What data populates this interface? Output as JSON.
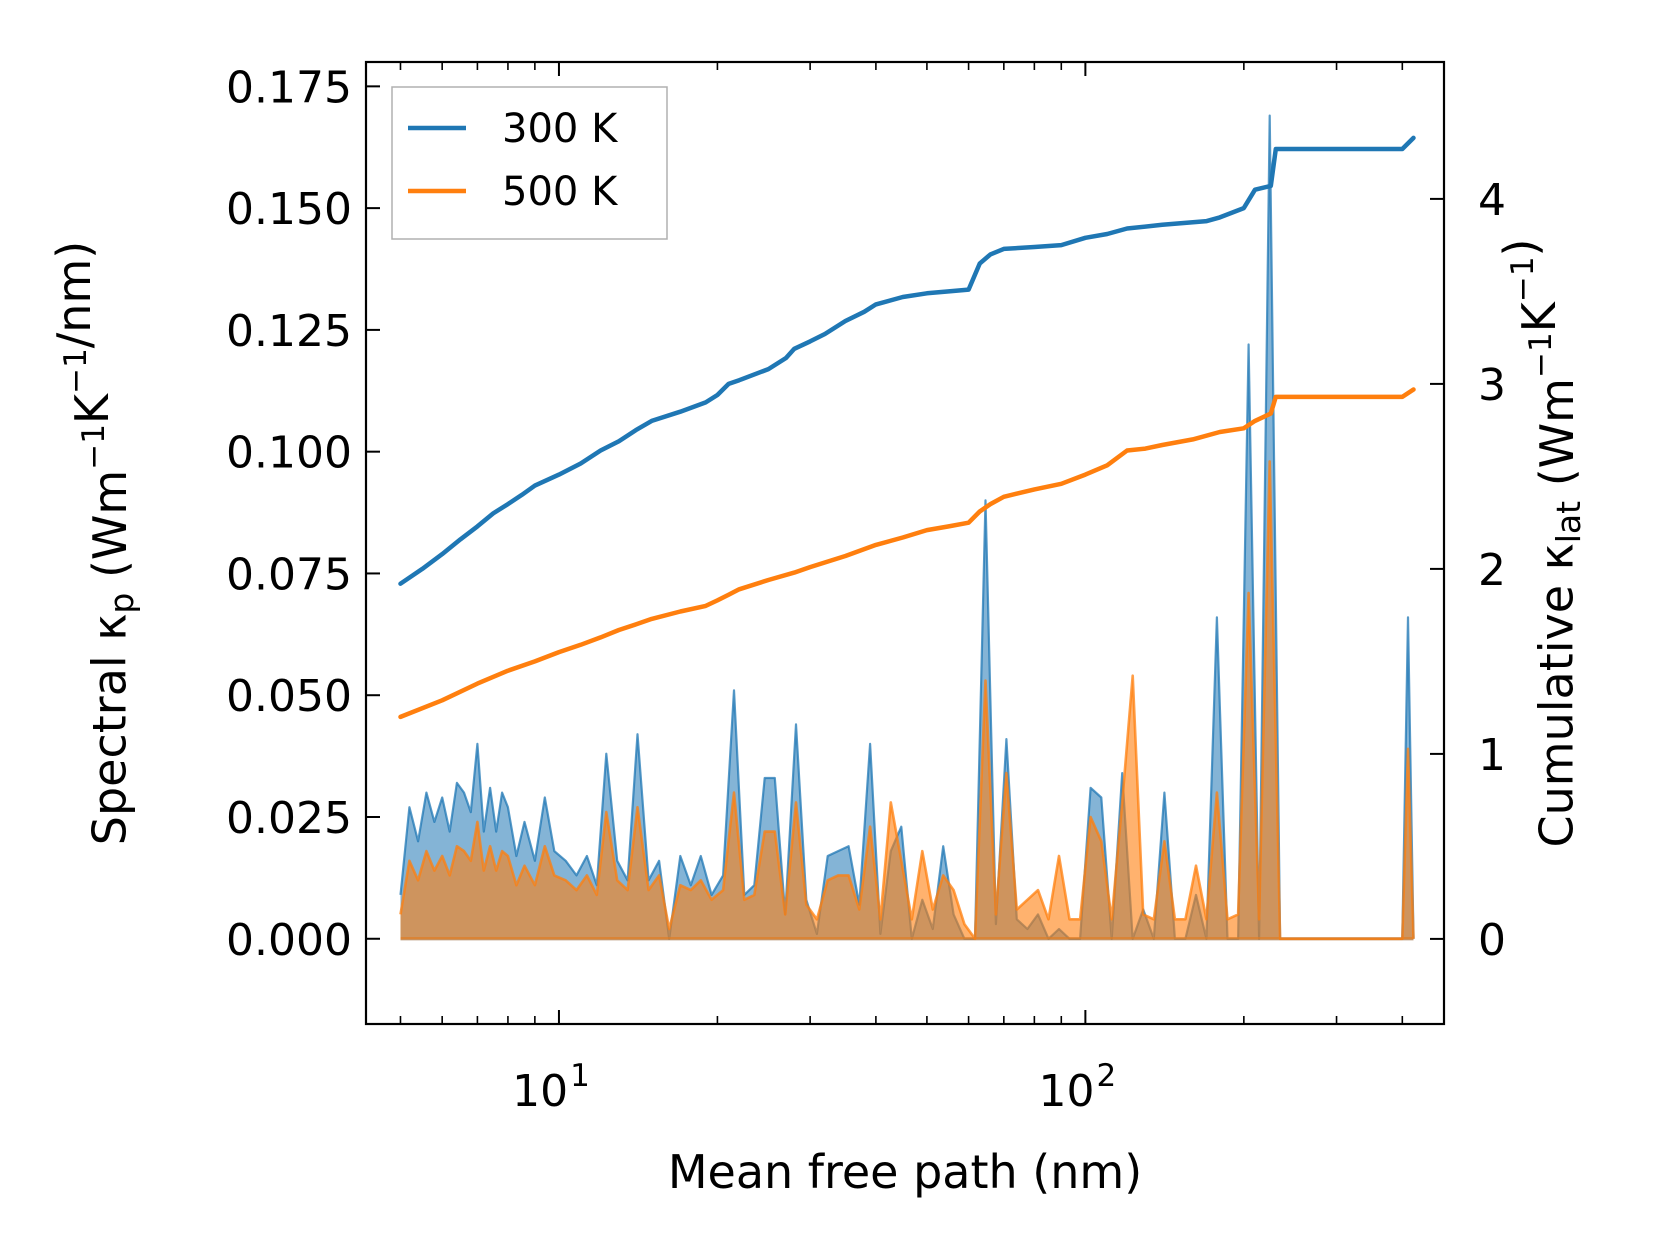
{
  "chart_data": {
    "type": "line",
    "xscale": "log",
    "xlabel": "Mean free path (nm)",
    "ylabel_left": "Spectral κp (Wm−1K−1/nm)",
    "ylabel_right": "Cumulative κlat (Wm−1K−1)",
    "xlim": [
      4.3,
      480
    ],
    "ylim_left": [
      -0.0175,
      0.18
    ],
    "ylim_right": [
      -0.46,
      4.74
    ],
    "x_ticks": [
      10,
      100
    ],
    "x_tick_labels": [
      {
        "base": "10",
        "exp": "1"
      },
      {
        "base": "10",
        "exp": "2"
      }
    ],
    "y_left_ticks": [
      0.0,
      0.025,
      0.05,
      0.075,
      0.1,
      0.125,
      0.15,
      0.175
    ],
    "y_left_tick_labels": [
      "0.000",
      "0.025",
      "0.050",
      "0.075",
      "0.100",
      "0.125",
      "0.150",
      "0.175"
    ],
    "y_right_ticks": [
      0,
      1,
      2,
      3,
      4
    ],
    "y_right_tick_labels": [
      "0",
      "1",
      "2",
      "3",
      "4"
    ],
    "legend_position": "top-left",
    "colors": {
      "300K": "#1f77b4",
      "500K": "#ff7f0e"
    },
    "series": [
      {
        "name": "300 K",
        "color": "#1f77b4",
        "cumulative": {
          "x": [
            5.0,
            5.5,
            6.0,
            6.5,
            7.0,
            7.5,
            8.0,
            8.5,
            9.0,
            10.0,
            11.0,
            12.0,
            13.0,
            14.0,
            15.0,
            17.0,
            19.0,
            20.0,
            21.0,
            22.0,
            25.0,
            27.0,
            28.0,
            30.0,
            32.0,
            35.0,
            38.0,
            40.0,
            45.0,
            50.0,
            55.0,
            60.0,
            63.0,
            66.0,
            70.0,
            80.0,
            90.0,
            100.0,
            110.0,
            120.0,
            140.0,
            170.0,
            180.0,
            200.0,
            210.0,
            225.0,
            230.0,
            400.0,
            420.0
          ],
          "y": [
            1.92,
            2.0,
            2.08,
            2.16,
            2.23,
            2.3,
            2.35,
            2.4,
            2.45,
            2.51,
            2.57,
            2.64,
            2.69,
            2.75,
            2.8,
            2.85,
            2.9,
            2.94,
            3.0,
            3.02,
            3.08,
            3.14,
            3.19,
            3.23,
            3.27,
            3.34,
            3.39,
            3.43,
            3.47,
            3.49,
            3.5,
            3.51,
            3.65,
            3.7,
            3.73,
            3.74,
            3.75,
            3.79,
            3.81,
            3.84,
            3.86,
            3.88,
            3.9,
            3.95,
            4.05,
            4.07,
            4.27,
            4.27,
            4.33
          ]
        },
        "spectral": {
          "x": [
            5.0,
            5.2,
            5.4,
            5.6,
            5.8,
            6.0,
            6.2,
            6.4,
            6.6,
            6.8,
            7.0,
            7.2,
            7.4,
            7.6,
            7.8,
            8.0,
            8.3,
            8.6,
            9.0,
            9.4,
            9.8,
            10.3,
            10.8,
            11.3,
            11.8,
            12.3,
            12.9,
            13.5,
            14.1,
            14.8,
            15.5,
            16.2,
            17.0,
            17.8,
            18.6,
            19.5,
            20.5,
            21.5,
            22.5,
            23.5,
            24.6,
            25.7,
            26.9,
            28.2,
            29.5,
            30.9,
            32.4,
            33.9,
            35.5,
            37.2,
            39.0,
            40.8,
            42.7,
            44.7,
            46.8,
            49.0,
            51.3,
            53.7,
            56.2,
            58.9,
            61.7,
            64.6,
            67.6,
            70.8,
            74.1,
            77.6,
            81.3,
            85.1,
            89.1,
            93.3,
            97.7,
            102.3,
            107.2,
            112.2,
            117.5,
            123.0,
            128.8,
            134.9,
            141.3,
            147.9,
            154.9,
            162.2,
            169.8,
            177.8,
            186.2,
            195.0,
            204.2,
            213.8,
            223.9,
            234.4,
            245.5,
            257.0,
            300.0,
            350.0,
            390.0,
            400.0,
            410.0,
            420.0
          ],
          "y": [
            0.009,
            0.027,
            0.02,
            0.03,
            0.024,
            0.029,
            0.022,
            0.032,
            0.03,
            0.026,
            0.04,
            0.022,
            0.031,
            0.022,
            0.03,
            0.027,
            0.017,
            0.024,
            0.016,
            0.029,
            0.018,
            0.016,
            0.013,
            0.017,
            0.011,
            0.038,
            0.016,
            0.012,
            0.042,
            0.012,
            0.016,
            0.0,
            0.017,
            0.011,
            0.017,
            0.009,
            0.013,
            0.051,
            0.009,
            0.011,
            0.033,
            0.033,
            0.005,
            0.044,
            0.008,
            0.001,
            0.017,
            0.018,
            0.019,
            0.007,
            0.04,
            0.001,
            0.018,
            0.023,
            0.0,
            0.008,
            0.002,
            0.019,
            0.005,
            0.0,
            0.0,
            0.09,
            0.003,
            0.041,
            0.004,
            0.002,
            0.005,
            0.0,
            0.002,
            0.0,
            0.0,
            0.031,
            0.029,
            0.0,
            0.034,
            0.0,
            0.006,
            0.0,
            0.03,
            0.0,
            0.0,
            0.009,
            0.0,
            0.066,
            0.0,
            0.0,
            0.122,
            0.0,
            0.169,
            0.0,
            0.0,
            0.0,
            0.0,
            0.0,
            0.0,
            0.0,
            0.066,
            0.0
          ]
        }
      },
      {
        "name": "500 K",
        "color": "#ff7f0e",
        "cumulative": {
          "x": [
            5.0,
            6.0,
            7.0,
            8.0,
            9.0,
            10.0,
            11.0,
            12.0,
            13.0,
            14.0,
            15.0,
            17.0,
            19.0,
            20.0,
            21.0,
            22.0,
            25.0,
            28.0,
            30.0,
            35.0,
            40.0,
            45.0,
            50.0,
            55.0,
            60.0,
            63.0,
            66.0,
            70.0,
            80.0,
            90.0,
            100.0,
            110.0,
            120.0,
            130.0,
            140.0,
            160.0,
            180.0,
            200.0,
            210.0,
            225.0,
            230.0,
            400.0,
            420.0
          ],
          "y": [
            1.2,
            1.29,
            1.38,
            1.45,
            1.5,
            1.55,
            1.59,
            1.63,
            1.67,
            1.7,
            1.73,
            1.77,
            1.8,
            1.83,
            1.86,
            1.89,
            1.94,
            1.98,
            2.01,
            2.07,
            2.13,
            2.17,
            2.21,
            2.23,
            2.25,
            2.31,
            2.35,
            2.39,
            2.43,
            2.46,
            2.51,
            2.56,
            2.64,
            2.65,
            2.67,
            2.7,
            2.74,
            2.76,
            2.8,
            2.84,
            2.93,
            2.93,
            2.97
          ]
        },
        "spectral": {
          "x": [
            5.0,
            5.2,
            5.4,
            5.6,
            5.8,
            6.0,
            6.2,
            6.4,
            6.6,
            6.8,
            7.0,
            7.2,
            7.4,
            7.6,
            7.8,
            8.0,
            8.3,
            8.6,
            9.0,
            9.4,
            9.8,
            10.3,
            10.8,
            11.3,
            11.8,
            12.3,
            12.9,
            13.5,
            14.1,
            14.8,
            15.5,
            16.2,
            17.0,
            17.8,
            18.6,
            19.5,
            20.5,
            21.5,
            22.5,
            23.5,
            24.6,
            25.7,
            26.9,
            28.2,
            29.5,
            30.9,
            32.4,
            33.9,
            35.5,
            37.2,
            39.0,
            40.8,
            42.7,
            44.7,
            46.8,
            49.0,
            51.3,
            53.7,
            56.2,
            58.9,
            61.7,
            64.6,
            67.6,
            70.8,
            74.1,
            77.6,
            81.3,
            85.1,
            89.1,
            93.3,
            97.7,
            102.3,
            107.2,
            112.2,
            117.5,
            123.0,
            128.8,
            134.9,
            141.3,
            147.9,
            154.9,
            162.2,
            169.8,
            177.8,
            186.2,
            195.0,
            204.2,
            213.8,
            223.9,
            234.4,
            245.5,
            257.0,
            300.0,
            350.0,
            390.0,
            400.0,
            410.0,
            420.0
          ],
          "y": [
            0.005,
            0.016,
            0.012,
            0.018,
            0.014,
            0.017,
            0.013,
            0.019,
            0.018,
            0.016,
            0.024,
            0.014,
            0.019,
            0.014,
            0.018,
            0.017,
            0.011,
            0.015,
            0.011,
            0.019,
            0.013,
            0.012,
            0.01,
            0.013,
            0.009,
            0.026,
            0.012,
            0.01,
            0.027,
            0.01,
            0.013,
            0.002,
            0.011,
            0.01,
            0.012,
            0.008,
            0.01,
            0.03,
            0.008,
            0.009,
            0.022,
            0.022,
            0.005,
            0.028,
            0.007,
            0.004,
            0.012,
            0.013,
            0.013,
            0.006,
            0.023,
            0.004,
            0.028,
            0.016,
            0.004,
            0.018,
            0.006,
            0.013,
            0.01,
            0.003,
            0.0,
            0.053,
            0.005,
            0.034,
            0.006,
            0.008,
            0.01,
            0.004,
            0.017,
            0.004,
            0.004,
            0.025,
            0.02,
            0.004,
            0.028,
            0.054,
            0.005,
            0.004,
            0.02,
            0.004,
            0.004,
            0.015,
            0.004,
            0.03,
            0.004,
            0.005,
            0.071,
            0.004,
            0.098,
            0.0,
            0.0,
            0.0,
            0.0,
            0.0,
            0.0,
            0.0,
            0.039,
            0.0
          ]
        }
      }
    ]
  }
}
